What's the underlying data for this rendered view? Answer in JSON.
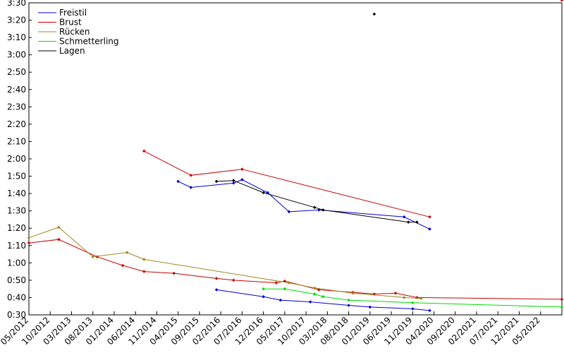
{
  "chart_data": {
    "type": "line",
    "title": "",
    "xlabel": "",
    "ylabel": "",
    "x_axis": {
      "kind": "date",
      "range": [
        "2012-05",
        "2022-10"
      ],
      "tick_labels": [
        "05/2012",
        "10/2012",
        "03/2013",
        "08/2013",
        "01/2014",
        "06/2014",
        "11/2014",
        "04/2015",
        "09/2015",
        "02/2016",
        "07/2016",
        "12/2016",
        "05/2017",
        "10/2017",
        "03/2018",
        "08/2018",
        "01/2019",
        "06/2019",
        "11/2019",
        "04/2020",
        "09/2020",
        "02/2021",
        "07/2021",
        "12/2021",
        "05/2022"
      ]
    },
    "y_axis": {
      "kind": "time_mm_ss",
      "range_seconds": [
        30,
        210
      ],
      "tick_labels": [
        "0:30",
        "0:40",
        "0:50",
        "1:00",
        "1:10",
        "1:20",
        "1:30",
        "1:40",
        "1:50",
        "2:00",
        "2:10",
        "2:20",
        "2:30",
        "2:40",
        "2:50",
        "3:00",
        "3:10",
        "3:20",
        "3:30"
      ]
    },
    "grid": false,
    "legend": "top-left",
    "series": [
      {
        "name": "Freistil",
        "color": "#0000cc",
        "groups": [
          {
            "points": [
              [
                "2016-01",
                44.5
              ],
              [
                "2016-12",
                40.5
              ],
              [
                "2017-04",
                38.5
              ],
              [
                "2017-11",
                37.5
              ],
              [
                "2018-08",
                35.5
              ],
              [
                "2019-01",
                34.5
              ],
              [
                "2019-11",
                33.5
              ],
              [
                "2020-03",
                32.5
              ]
            ]
          },
          {
            "points": [
              [
                "2015-04",
                107
              ],
              [
                "2015-07",
                103.5
              ],
              [
                "2016-05",
                106
              ],
              [
                "2016-07",
                108
              ],
              [
                "2017-01",
                100.5
              ],
              [
                "2017-06",
                89.5
              ],
              [
                "2018-01",
                90.5
              ],
              [
                "2019-09",
                86.5
              ],
              [
                "2020-03",
                79.5
              ]
            ]
          }
        ]
      },
      {
        "name": "Brust",
        "color": "#cc0000",
        "groups": [
          {
            "points": [
              [
                "2012-05",
                71.5
              ],
              [
                "2012-12",
                73.5
              ],
              [
                "2013-09",
                63.5
              ],
              [
                "2014-03",
                58.5
              ],
              [
                "2014-08",
                55
              ],
              [
                "2015-03",
                54
              ],
              [
                "2016-01",
                51
              ],
              [
                "2016-05",
                50
              ],
              [
                "2017-03",
                48.5
              ],
              [
                "2017-05",
                49.5
              ],
              [
                "2018-01",
                44.5
              ],
              [
                "2018-09",
                43
              ],
              [
                "2019-02",
                42
              ],
              [
                "2019-07",
                42.5
              ],
              [
                "2019-12",
                40
              ],
              [
                "2022-10",
                39
              ]
            ]
          },
          {
            "points": [
              [
                "2014-08",
                124.5
              ],
              [
                "2015-07",
                110.5
              ],
              [
                "2016-07",
                114
              ],
              [
                "2020-03",
                86.5
              ]
            ]
          },
          {
            "points": [
              [
                "2022-10",
                211.5
              ]
            ]
          }
        ]
      },
      {
        "name": "Rücken",
        "color": "#a08820",
        "groups": [
          {
            "points": [
              [
                "2012-05",
                74.5
              ],
              [
                "2012-12",
                80.5
              ],
              [
                "2013-08",
                63.5
              ],
              [
                "2014-04",
                66
              ],
              [
                "2014-08",
                62
              ],
              [
                "2017-06",
                48.5
              ],
              [
                "2017-12",
                45.5
              ],
              [
                "2018-09",
                42.5
              ],
              [
                "2019-09",
                40
              ],
              [
                "2020-01",
                39.5
              ]
            ]
          }
        ]
      },
      {
        "name": "Schmetterling",
        "color": "#00dd00",
        "groups": [
          {
            "points": [
              [
                "2016-12",
                45
              ],
              [
                "2017-05",
                45
              ],
              [
                "2017-12",
                42
              ],
              [
                "2018-02",
                40.5
              ],
              [
                "2018-08",
                38.5
              ],
              [
                "2019-11",
                37
              ],
              [
                "2022-10",
                34.5
              ]
            ]
          }
        ]
      },
      {
        "name": "Lagen",
        "color": "#000000",
        "groups": [
          {
            "points": [
              [
                "2016-01",
                107
              ],
              [
                "2016-05",
                107.5
              ],
              [
                "2016-12",
                100.5
              ],
              [
                "2017-12",
                92
              ],
              [
                "2018-02",
                90.5
              ],
              [
                "2019-10",
                83.5
              ],
              [
                "2019-12",
                83.5
              ]
            ]
          },
          {
            "points": [
              [
                "2019-02",
                203.5
              ]
            ]
          }
        ]
      }
    ]
  }
}
